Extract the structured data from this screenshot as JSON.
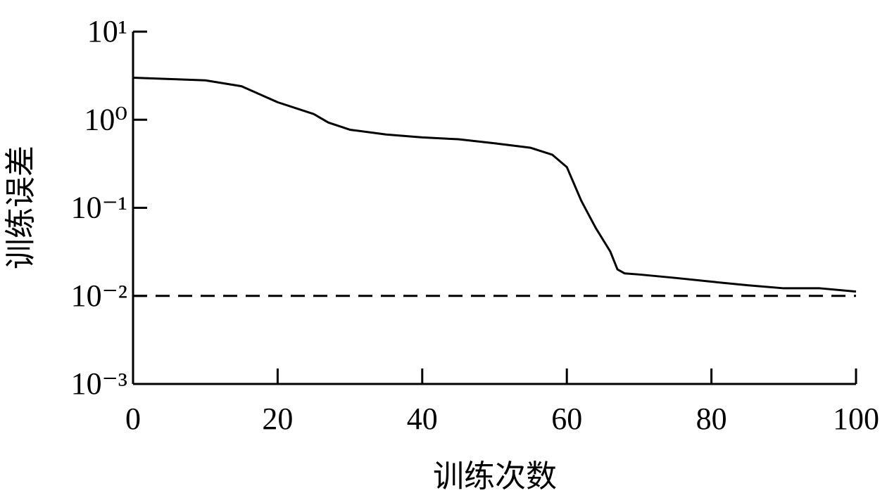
{
  "chart_data": {
    "type": "line",
    "x_label": "训练次数",
    "y_label": "训练误差",
    "x": [
      0,
      5,
      10,
      15,
      20,
      25,
      27,
      30,
      35,
      40,
      45,
      50,
      55,
      58,
      60,
      62,
      64,
      66,
      67,
      68,
      70,
      75,
      80,
      85,
      90,
      95,
      100
    ],
    "values": [
      3.0,
      2.9,
      2.8,
      2.4,
      1.58,
      1.16,
      0.93,
      0.77,
      0.68,
      0.63,
      0.6,
      0.54,
      0.48,
      0.4,
      0.29,
      0.12,
      0.059,
      0.032,
      0.02,
      0.018,
      0.0175,
      0.016,
      0.0145,
      0.0132,
      0.0122,
      0.0122,
      0.0112
    ],
    "color": "#000000",
    "reference_line": {
      "value": 0.01,
      "style": "dashed",
      "color": "#000000"
    },
    "log_y": true,
    "xlim": [
      0,
      100
    ],
    "xticks": [
      0,
      20,
      40,
      60,
      80,
      100
    ],
    "ylim": [
      0.001,
      10
    ],
    "yticks": [
      {
        "value": 10,
        "label": "10¹"
      },
      {
        "value": 1,
        "label": "10⁰"
      },
      {
        "value": 0.1,
        "label": "10⁻¹"
      },
      {
        "value": 0.01,
        "label": "10⁻²"
      },
      {
        "value": 0.001,
        "label": "10⁻³"
      }
    ]
  }
}
